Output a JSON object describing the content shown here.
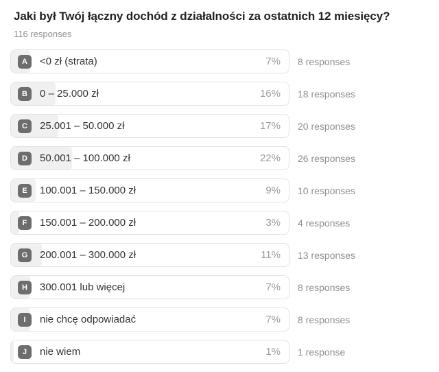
{
  "header": {
    "title": "Jaki był Twój łączny dochód z działalności za ostatnich 12 miesięcy?",
    "responses_total_label": "116 responses"
  },
  "rows": [
    {
      "letter": "A",
      "label": "<0 zł (strata)",
      "percent": 7,
      "percent_label": "7%",
      "count_label": "8 responses"
    },
    {
      "letter": "B",
      "label": "0 – 25.000 zł",
      "percent": 16,
      "percent_label": "16%",
      "count_label": "18 responses"
    },
    {
      "letter": "C",
      "label": "25.001 – 50.000 zł",
      "percent": 17,
      "percent_label": "17%",
      "count_label": "20 responses"
    },
    {
      "letter": "D",
      "label": "50.001 – 100.000 zł",
      "percent": 22,
      "percent_label": "22%",
      "count_label": "26 responses"
    },
    {
      "letter": "E",
      "label": "100.001 – 150.000 zł",
      "percent": 9,
      "percent_label": "9%",
      "count_label": "10 responses"
    },
    {
      "letter": "F",
      "label": "150.001 – 200.000 zł",
      "percent": 3,
      "percent_label": "3%",
      "count_label": "4 responses"
    },
    {
      "letter": "G",
      "label": "200.001 – 300.000 zł",
      "percent": 11,
      "percent_label": "11%",
      "count_label": "13 responses"
    },
    {
      "letter": "H",
      "label": "300.001 lub więcej",
      "percent": 7,
      "percent_label": "7%",
      "count_label": "8 responses"
    },
    {
      "letter": "I",
      "label": "nie chcę odpowiadać",
      "percent": 7,
      "percent_label": "7%",
      "count_label": "8 responses"
    },
    {
      "letter": "J",
      "label": "nie wiem",
      "percent": 1,
      "percent_label": "1%",
      "count_label": "1 response"
    }
  ],
  "colors": {
    "badge_background": "#6d6d6d",
    "badge_text": "#ffffff",
    "fill_bar": "#f0f0f0",
    "box_border": "#e3e3e3",
    "title_text": "#222222",
    "muted_text": "#8f8f8f",
    "percent_text": "#9c9c9c",
    "option_text": "#333333"
  },
  "chart_data": {
    "type": "bar",
    "title": "Jaki był Twój łączny dochód z działalności za ostatnich 12 miesięcy?",
    "subtitle": "116 responses",
    "categories": [
      "<0 zł (strata)",
      "0 – 25.000 zł",
      "25.001 – 50.000 zł",
      "50.001 – 100.000 zł",
      "100.001 – 150.000 zł",
      "150.001 – 200.000 zł",
      "200.001 – 300.000 zł",
      "300.001 lub więcej",
      "nie chcę odpowiadać",
      "nie wiem"
    ],
    "series": [
      {
        "name": "percent",
        "values": [
          7,
          16,
          17,
          22,
          9,
          3,
          11,
          7,
          7,
          1
        ]
      },
      {
        "name": "responses",
        "values": [
          8,
          18,
          20,
          26,
          10,
          4,
          13,
          8,
          8,
          1
        ]
      }
    ],
    "xlabel": "",
    "ylabel": "",
    "xlim": [
      0,
      100
    ],
    "orientation": "horizontal",
    "grid": false,
    "legend": false
  }
}
